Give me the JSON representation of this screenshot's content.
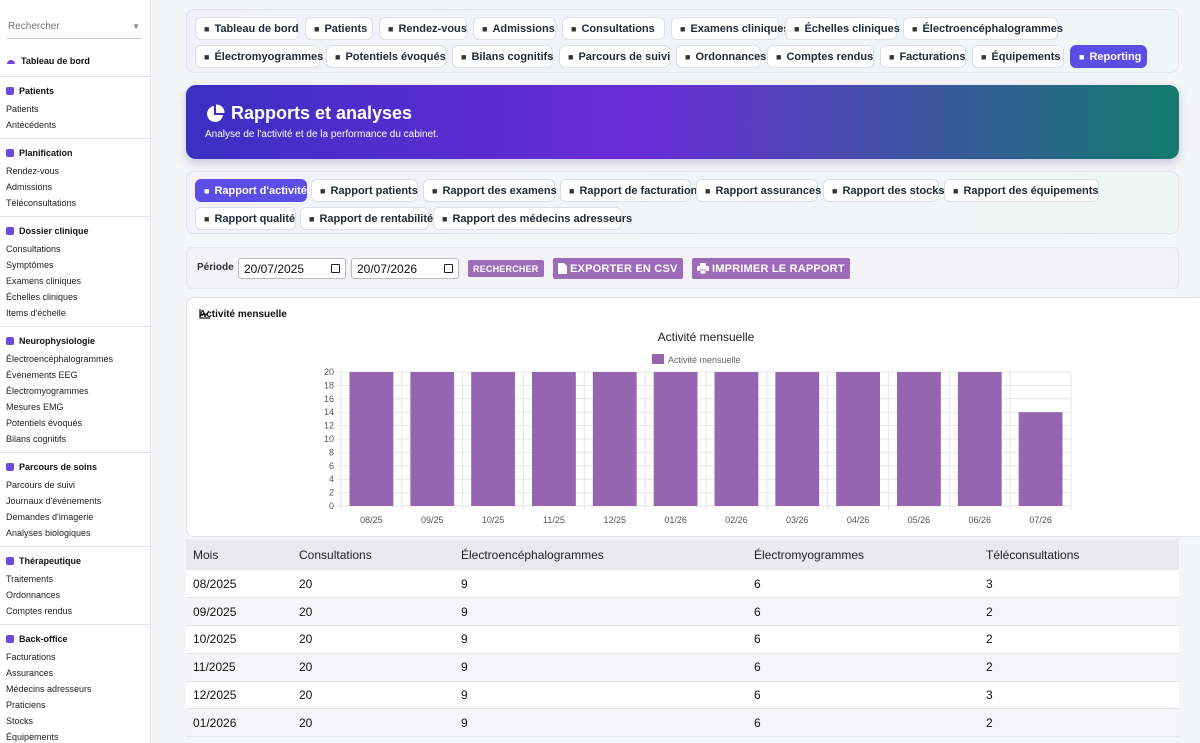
{
  "sidebar": {
    "search_placeholder": "Rechercher",
    "dashboard": "Tableau de bord",
    "groups": [
      {
        "title": "Patients",
        "items": [
          "Patients",
          "Antécédents"
        ]
      },
      {
        "title": "Planification",
        "items": [
          "Rendez-vous",
          "Admissions",
          "Téléconsultations"
        ]
      },
      {
        "title": "Dossier clinique",
        "items": [
          "Consultations",
          "Symptômes",
          "Examens cliniques",
          "Échelles cliniques",
          "Items d'échelle"
        ]
      },
      {
        "title": "Neurophysiologie",
        "items": [
          "Électroencéphalogrammes",
          "Événements EEG",
          "Électromyogrammes",
          "Mesures EMG",
          "Potentiels évoqués",
          "Bilans cognitifs"
        ]
      },
      {
        "title": "Parcours de soins",
        "items": [
          "Parcours de suivi",
          "Journaux d'événements",
          "Demandes d'imagerie",
          "Analyses biologiques"
        ]
      },
      {
        "title": "Thérapeutique",
        "items": [
          "Traitements",
          "Ordonnances",
          "Comptes rendus"
        ]
      },
      {
        "title": "Back-office",
        "items": [
          "Facturations",
          "Assurances",
          "Médecins adresseurs",
          "Praticiens",
          "Stocks",
          "Équipements"
        ]
      }
    ]
  },
  "topnav": {
    "row1": [
      "Tableau de bord",
      "Patients",
      "Rendez-vous",
      "Admissions",
      "Consultations",
      "Examens cliniques",
      "Échelles cliniques",
      "Électroencéphalogrammes"
    ],
    "row2": [
      "Électromyogrammes",
      "Potentiels évoqués",
      "Bilans cognitifs",
      "Parcours de suivi",
      "Ordonnances",
      "Comptes rendus",
      "Facturations",
      "Équipements",
      "Reporting"
    ]
  },
  "hero": {
    "title": "Rapports et analyses",
    "subtitle": "Analyse de l'activité et de la performance du cabinet."
  },
  "report_tabs": {
    "row1": [
      "Rapport d'activité",
      "Rapport patients",
      "Rapport des examens",
      "Rapport de facturation",
      "Rapport assurances",
      "Rapport des stocks",
      "Rapport des équipements"
    ],
    "row2": [
      "Rapport qualité",
      "Rapport de rentabilité",
      "Rapport des médecins adresseurs"
    ]
  },
  "filter": {
    "label": "Période",
    "from": "20/07/2025",
    "to": "20/07/2026",
    "search_label": "RECHERCHER",
    "export_label": "EXPORTER EN CSV",
    "print_label": "IMPRIMER LE RAPPORT"
  },
  "chart_card": {
    "title": "Activité mensuelle"
  },
  "colors": {
    "bar": "#9566af",
    "accent": "#5b4de6"
  },
  "chart_data": {
    "type": "bar",
    "title": "Activité mensuelle",
    "categories": [
      "08/25",
      "09/25",
      "10/25",
      "11/25",
      "12/25",
      "01/26",
      "02/26",
      "03/26",
      "04/26",
      "05/26",
      "06/26",
      "07/26"
    ],
    "series": [
      {
        "name": "Activité mensuelle",
        "values": [
          20,
          20,
          20,
          20,
          20,
          20,
          20,
          20,
          20,
          20,
          20,
          14
        ]
      }
    ],
    "ylim": [
      0,
      20
    ],
    "yticks": [
      0,
      2,
      4,
      6,
      8,
      10,
      12,
      14,
      16,
      18,
      20
    ],
    "grid": true,
    "legend": "top"
  },
  "table": {
    "headers": [
      "Mois",
      "Consultations",
      "Électroencéphalogrammes",
      "Électromyogrammes",
      "Téléconsultations"
    ],
    "rows": [
      [
        "08/2025",
        "20",
        "9",
        "6",
        "3"
      ],
      [
        "09/2025",
        "20",
        "9",
        "6",
        "2"
      ],
      [
        "10/2025",
        "20",
        "9",
        "6",
        "2"
      ],
      [
        "11/2025",
        "20",
        "9",
        "6",
        "2"
      ],
      [
        "12/2025",
        "20",
        "9",
        "6",
        "3"
      ],
      [
        "01/2026",
        "20",
        "9",
        "6",
        "2"
      ]
    ]
  }
}
